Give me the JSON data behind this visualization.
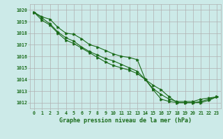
{
  "x": [
    0,
    1,
    2,
    3,
    4,
    5,
    6,
    7,
    8,
    9,
    10,
    11,
    12,
    13,
    14,
    15,
    16,
    17,
    18,
    19,
    20,
    21,
    22,
    23
  ],
  "line1": [
    1019.8,
    1019.4,
    1019.2,
    1018.5,
    1018.0,
    1017.9,
    1017.5,
    1017.0,
    1016.8,
    1016.5,
    1016.2,
    1016.0,
    1015.9,
    1015.7,
    1014.0,
    1013.1,
    1012.3,
    1012.1,
    1012.0,
    1012.0,
    1012.0,
    1012.1,
    1012.3,
    1012.5
  ],
  "line2": [
    1019.8,
    1019.3,
    1018.8,
    1018.1,
    1017.6,
    1017.3,
    1016.8,
    1016.4,
    1016.1,
    1015.8,
    1015.6,
    1015.3,
    1015.0,
    1014.7,
    1014.0,
    1013.2,
    1012.7,
    1012.3,
    1012.1,
    1012.1,
    1012.1,
    1012.3,
    1012.4,
    1012.5
  ],
  "line3": [
    1019.8,
    1019.1,
    1018.7,
    1018.0,
    1017.4,
    1017.1,
    1016.7,
    1016.3,
    1015.9,
    1015.5,
    1015.2,
    1015.0,
    1014.8,
    1014.5,
    1014.0,
    1013.5,
    1013.1,
    1012.5,
    1012.0,
    1012.0,
    1012.0,
    1012.0,
    1012.2,
    1012.5
  ],
  "bg_color": "#cceae8",
  "grid_color": "#b0b0b0",
  "line_color": "#1a6b1a",
  "xlabel": "Graphe pression niveau de la mer (hPa)",
  "ylim_min": 1011.5,
  "ylim_max": 1020.5,
  "xlim_min": -0.5,
  "xlim_max": 23.5,
  "yticks": [
    1012,
    1013,
    1014,
    1015,
    1016,
    1017,
    1018,
    1019,
    1020
  ],
  "xticks": [
    0,
    1,
    2,
    3,
    4,
    5,
    6,
    7,
    8,
    9,
    10,
    11,
    12,
    13,
    14,
    15,
    16,
    17,
    18,
    19,
    20,
    21,
    22,
    23
  ]
}
